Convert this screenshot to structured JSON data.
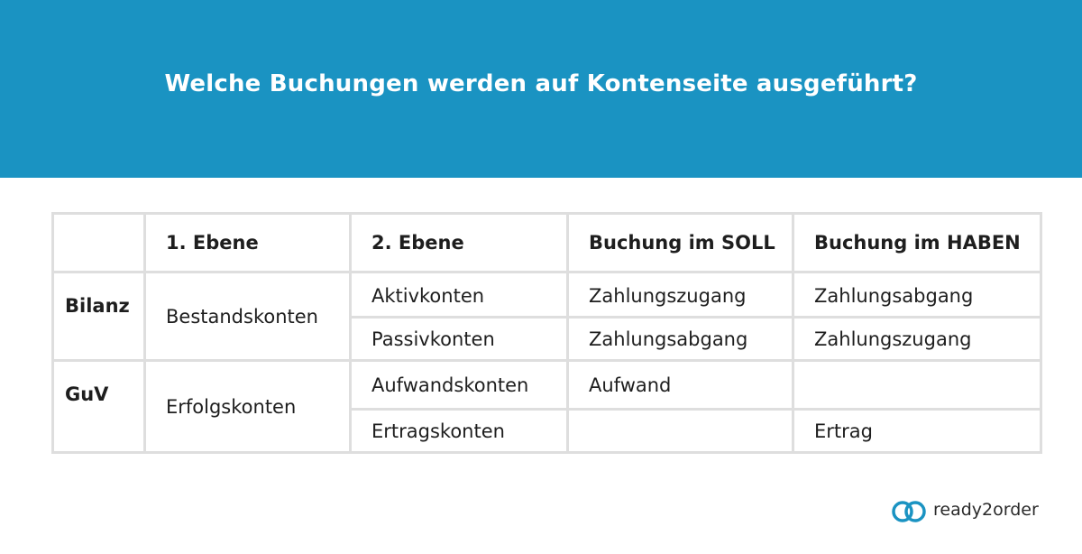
{
  "header": {
    "title": "Welche Buchungen werden auf Kontenseite ausgeführt?"
  },
  "table": {
    "columns": [
      "",
      "1. Ebene",
      "2. Ebene",
      "Buchung im SOLL",
      "Buchung im HABEN"
    ],
    "groups": [
      {
        "label": "Bilanz",
        "level1": "Bestandskonten",
        "rows": [
          {
            "level2": "Aktivkonten",
            "soll": "Zahlungszugang",
            "haben": "Zahlungsabgang"
          },
          {
            "level2": "Passivkonten",
            "soll": "Zahlungsabgang",
            "haben": "Zahlungszugang"
          }
        ]
      },
      {
        "label": "GuV",
        "level1": "Erfolgskonten",
        "rows": [
          {
            "level2": "Aufwandskonten",
            "soll": "Aufwand",
            "haben": ""
          },
          {
            "level2": "Ertragskonten",
            "soll": "",
            "haben": "Ertrag"
          }
        ]
      }
    ]
  },
  "brand": {
    "name": "ready2order",
    "logo_icon": "linked-rings-icon",
    "accent_color": "#1a93c2"
  }
}
